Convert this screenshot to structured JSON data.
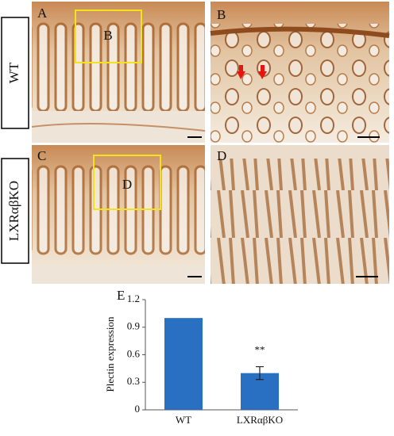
{
  "panels": [
    {
      "letter": "A",
      "inset_label": "B"
    },
    {
      "letter": "B"
    },
    {
      "letter": "C",
      "inset_label": "D"
    },
    {
      "letter": "D"
    }
  ],
  "row_labels": [
    "WT",
    "LXRαβKO"
  ],
  "chart_data": {
    "type": "bar",
    "panel_letter": "E",
    "ylabel": "Plectin expression",
    "categories": [
      "WT",
      "LXRαβKO"
    ],
    "values": [
      1.0,
      0.4
    ],
    "errors": [
      0,
      0.07
    ],
    "annotation": "**",
    "color": "#2a70c2",
    "ylim": [
      0,
      1.2
    ],
    "yticks": [
      0,
      0.3,
      0.6,
      0.9,
      1.2
    ]
  }
}
